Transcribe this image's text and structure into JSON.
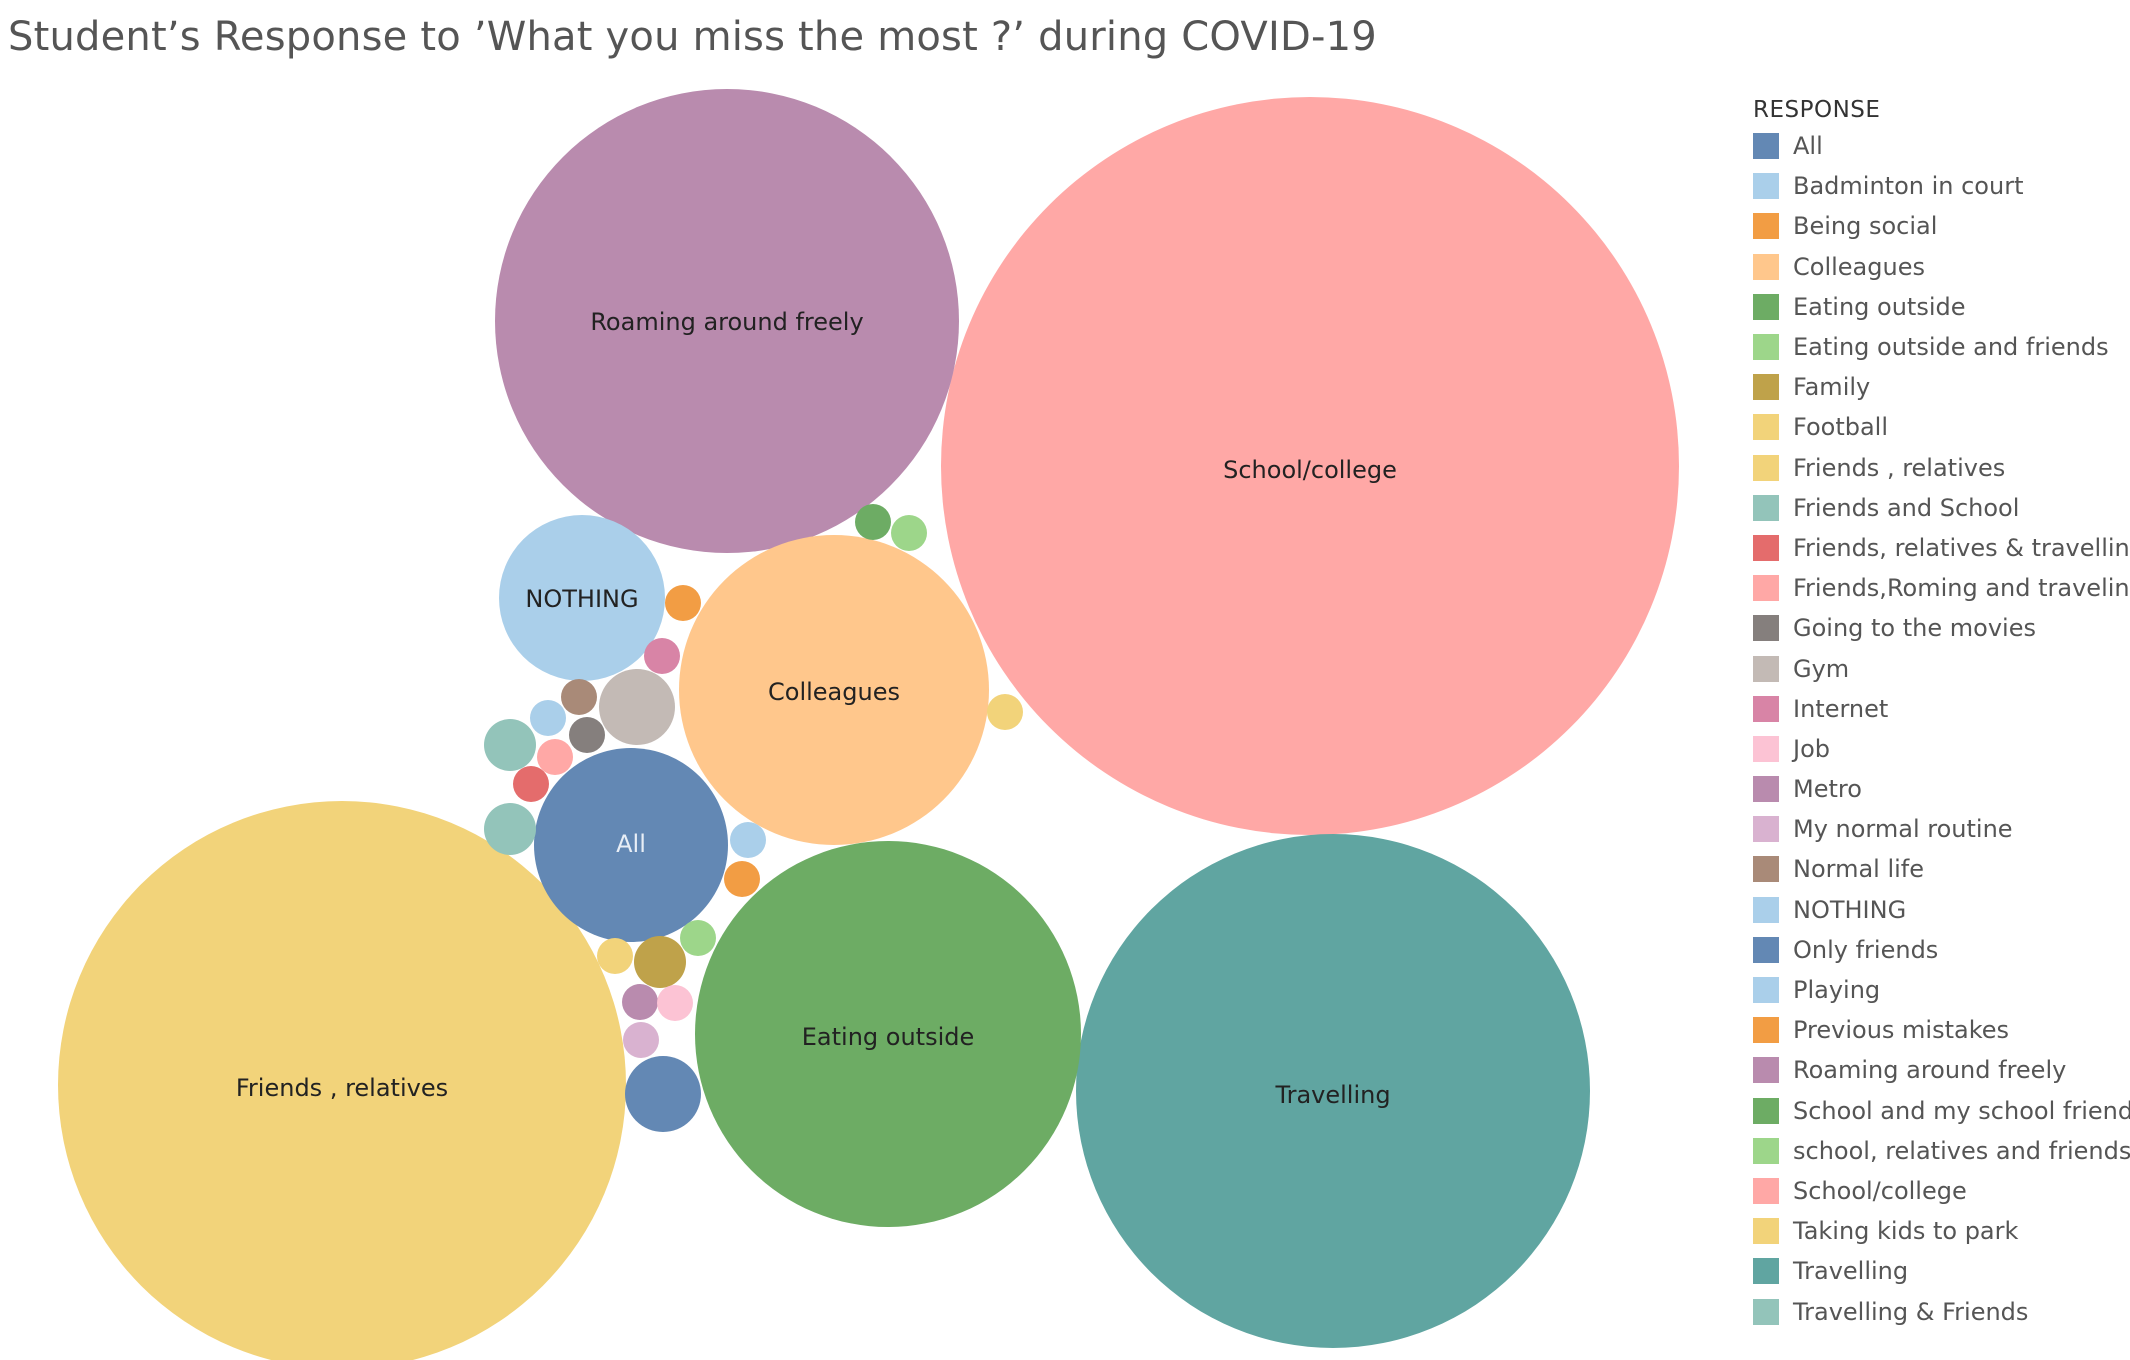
{
  "chart_data": {
    "type": "bubble",
    "title": "Student’s Response to ’What you miss the most ?’ during COVID-19",
    "legend": {
      "title": "RESPONSE",
      "placement": "right",
      "items": [
        {
          "label": "All",
          "color": "#6388B4"
        },
        {
          "label": "Badminton in court",
          "color": "#AACFEA"
        },
        {
          "label": "Being social",
          "color": "#F29D44"
        },
        {
          "label": "Colleagues",
          "color": "#FFC78C"
        },
        {
          "label": "Eating outside",
          "color": "#6DAC64"
        },
        {
          "label": "Eating outside and friends",
          "color": "#9DD68A"
        },
        {
          "label": "Family",
          "color": "#BFA24A"
        },
        {
          "label": "Football",
          "color": "#F2D37A"
        },
        {
          "label": "Friends , relatives",
          "color": "#F2D37A"
        },
        {
          "label": "Friends and School",
          "color": "#93C4BA"
        },
        {
          "label": "Friends, relatives & travelling",
          "color": "#E46C6C"
        },
        {
          "label": "Friends,Roming and traveling",
          "color": "#FFA8A6"
        },
        {
          "label": "Going to the movies",
          "color": "#857F7D"
        },
        {
          "label": "Gym",
          "color": "#C3BAB5"
        },
        {
          "label": "Internet",
          "color": "#D884A6"
        },
        {
          "label": "Job",
          "color": "#FCC3D4"
        },
        {
          "label": "Metro",
          "color": "#B98BAE"
        },
        {
          "label": "My normal routine",
          "color": "#D9B2D0"
        },
        {
          "label": "Normal life",
          "color": "#A98A78"
        },
        {
          "label": "NOTHING",
          "color": "#AACFEA"
        },
        {
          "label": "Only friends",
          "color": "#6388B4"
        },
        {
          "label": "Playing",
          "color": "#AACFEA"
        },
        {
          "label": "Previous mistakes",
          "color": "#F29D44"
        },
        {
          "label": "Roaming around freely",
          "color": "#B98BAE"
        },
        {
          "label": "School and my school friends",
          "color": "#6DAC64"
        },
        {
          "label": "school, relatives and friends",
          "color": "#9DD68A"
        },
        {
          "label": "School/college",
          "color": "#FFA8A6"
        },
        {
          "label": "Taking kids to park",
          "color": "#F2D37A"
        },
        {
          "label": "Travelling",
          "color": "#60A5A1"
        },
        {
          "label": "Travelling & Friends",
          "color": "#93C4BA"
        }
      ]
    },
    "bubbles": [
      {
        "response": "School/college",
        "label": "School/college",
        "size": 73,
        "color": "#FFA8A6",
        "text_color": "#222222"
      },
      {
        "response": "Friends , relatives",
        "label": "Friends , relatives",
        "size": 58,
        "color": "#F2D37A",
        "text_color": "#222222"
      },
      {
        "response": "Travelling",
        "label": "Travelling",
        "size": 44,
        "color": "#60A5A1",
        "text_color": "#222222"
      },
      {
        "response": "Eating outside",
        "label": "Eating outside",
        "size": 25,
        "color": "#6DAC64",
        "text_color": "#222222"
      },
      {
        "response": "Roaming around freely",
        "label": "Roaming around freely",
        "size": 35,
        "color": "#B98BAE",
        "text_color": "#222222"
      },
      {
        "response": "Colleagues",
        "label": "Colleagues",
        "size": 16,
        "color": "#FFC78C",
        "text_color": "#222222"
      },
      {
        "response": "NOTHING",
        "label": "NOTHING",
        "size": 4.6,
        "color": "#AACFEA",
        "text_color": "#222222"
      },
      {
        "response": "All",
        "label": "All",
        "size": 6.4,
        "color": "#6388B4",
        "text_color": "#e8eef6"
      },
      {
        "response": "Only friends",
        "label": "",
        "size": 1,
        "color": "#6388B4"
      },
      {
        "response": "Gym",
        "label": "",
        "size": 1,
        "color": "#C3BAB5"
      },
      {
        "response": "Friends and School",
        "label": "",
        "size": 1,
        "color": "#93C4BA"
      },
      {
        "response": "Travelling & Friends",
        "label": "",
        "size": 1,
        "color": "#93C4BA"
      },
      {
        "response": "Family",
        "label": "",
        "size": 1,
        "color": "#BFA24A"
      },
      {
        "response": "Internet",
        "label": "",
        "size": 1,
        "color": "#D884A6"
      },
      {
        "response": "Normal life",
        "label": "",
        "size": 1,
        "color": "#A98A78"
      },
      {
        "response": "Going to the movies",
        "label": "",
        "size": 1,
        "color": "#857F7D"
      },
      {
        "response": "Badminton in court",
        "label": "",
        "size": 1,
        "color": "#AACFEA"
      },
      {
        "response": "Friends,Roming and traveling",
        "label": "",
        "size": 1,
        "color": "#FFA8A6"
      },
      {
        "response": "Friends, relatives & travelling",
        "label": "",
        "size": 1,
        "color": "#E46C6C"
      },
      {
        "response": "Playing",
        "label": "",
        "size": 1,
        "color": "#AACFEA"
      },
      {
        "response": "Being social",
        "label": "",
        "size": 1,
        "color": "#F29D44"
      },
      {
        "response": "Previous mistakes",
        "label": "",
        "size": 1,
        "color": "#F29D44"
      },
      {
        "response": "School and my school friends",
        "label": "",
        "size": 1,
        "color": "#6DAC64"
      },
      {
        "response": "school, relatives and friends",
        "label": "",
        "size": 1,
        "color": "#9DD68A"
      },
      {
        "response": "Eating outside and friends",
        "label": "",
        "size": 1,
        "color": "#9DD68A"
      },
      {
        "response": "Football",
        "label": "",
        "size": 1,
        "color": "#F2D37A"
      },
      {
        "response": "Taking kids to park",
        "label": "",
        "size": 1,
        "color": "#F2D37A"
      },
      {
        "response": "Metro",
        "label": "",
        "size": 1,
        "color": "#B98BAE"
      },
      {
        "response": "Job",
        "label": "",
        "size": 1,
        "color": "#FCC3D4"
      },
      {
        "response": "My normal routine",
        "label": "",
        "size": 1,
        "color": "#D9B2D0"
      }
    ]
  }
}
